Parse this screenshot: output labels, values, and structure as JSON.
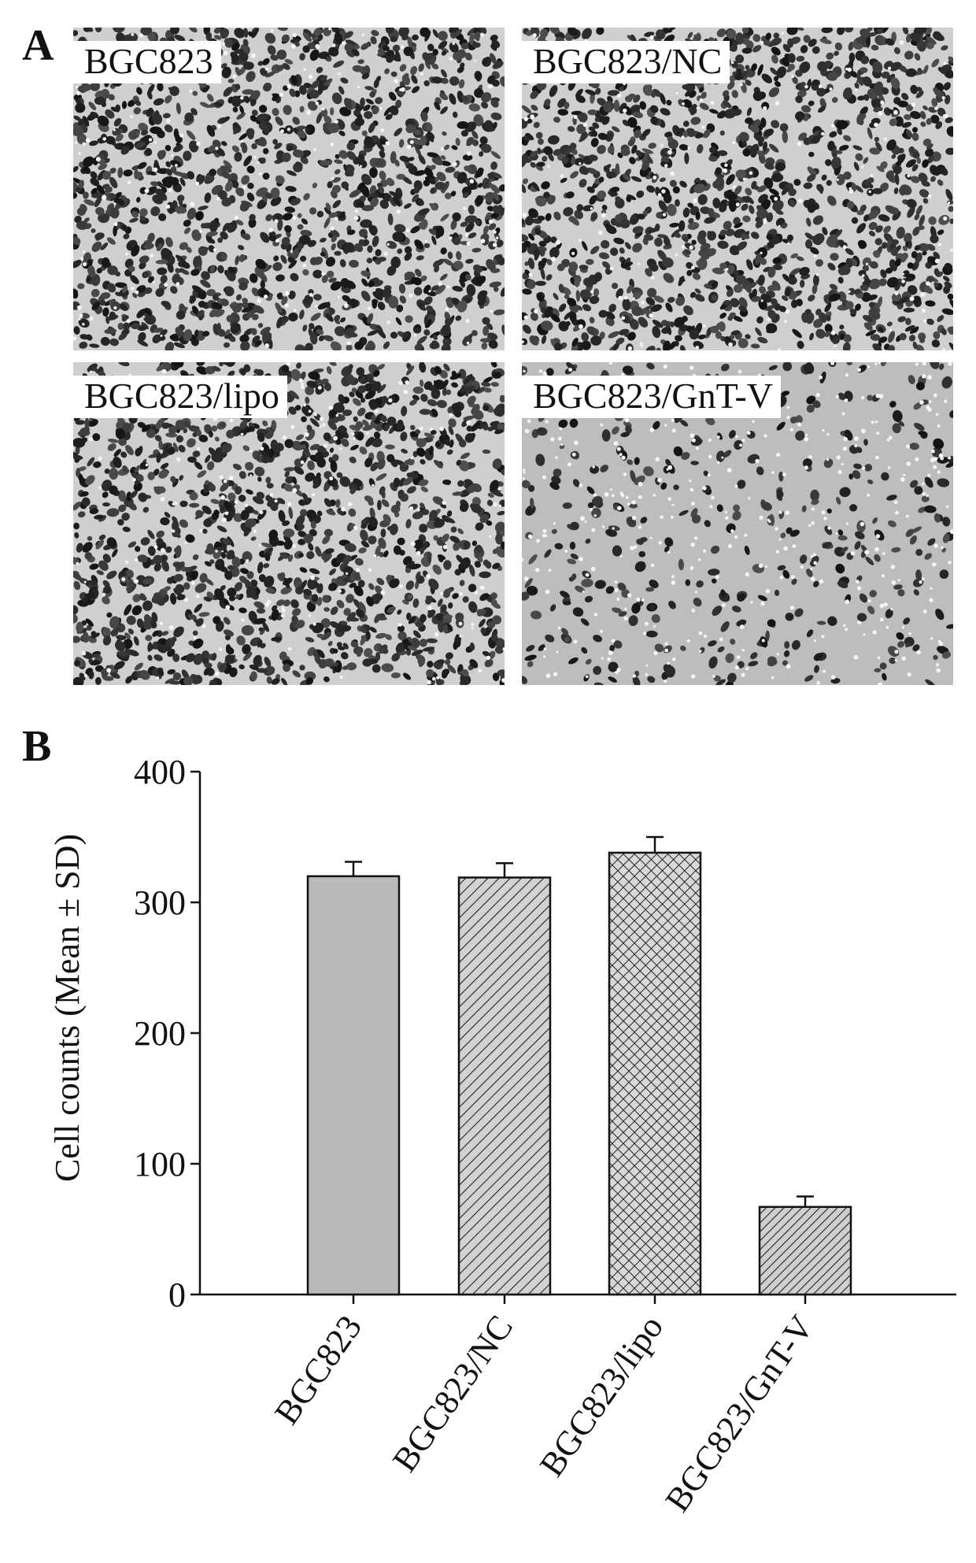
{
  "panels": {
    "a": "A",
    "b": "B"
  },
  "micrographs": [
    {
      "label": "BGC823",
      "density": "high"
    },
    {
      "label": "BGC823/NC",
      "density": "high"
    },
    {
      "label": "BGC823/lipo",
      "density": "high"
    },
    {
      "label": "BGC823/GnT-V",
      "density": "low"
    }
  ],
  "chart_data": {
    "type": "bar",
    "categories": [
      "BGC823",
      "BGC823/NC",
      "BGC823/lipo",
      "BGC823/GnT-V"
    ],
    "values": [
      320,
      319,
      338,
      67
    ],
    "errors": [
      11,
      11,
      12,
      8
    ],
    "fills": [
      "solid-gray",
      "diagonal-hatch",
      "crosshatch",
      "diagonal-hatch-dense"
    ],
    "ylabel": "Cell counts (Mean ± SD)",
    "xlabel": "",
    "ylim": [
      0,
      400
    ],
    "yticks": [
      0,
      100,
      200,
      300,
      400
    ],
    "grid": false,
    "colors": {
      "bar_fill": "#b9b9b9",
      "stroke": "#111111"
    }
  }
}
